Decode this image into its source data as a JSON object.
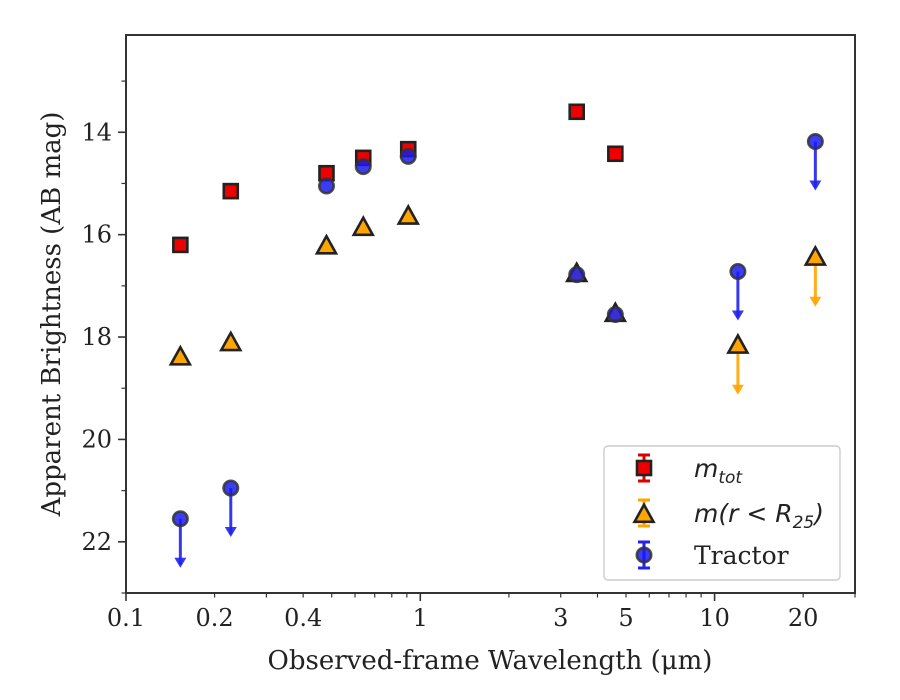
{
  "chart_data": {
    "type": "scatter",
    "title": "",
    "xlabel": "Observed-frame Wavelength (μm)",
    "ylabel": "Apparent Brightness (AB mag)",
    "x_scale": "log",
    "xlim": [
      0.1,
      30
    ],
    "ylim": [
      23,
      12.1
    ],
    "y_inverted": true,
    "x_ticks": [
      0.1,
      0.2,
      0.4,
      1,
      3,
      5,
      10,
      20
    ],
    "x_tick_labels": [
      "0.1",
      "0.2",
      "0.4",
      "1",
      "3",
      "5",
      "10",
      "20"
    ],
    "y_ticks": [
      14,
      16,
      18,
      20,
      22
    ],
    "y_tick_labels": [
      "14",
      "16",
      "18",
      "20",
      "22"
    ],
    "grid": false,
    "legend_position": "lower-right",
    "series": [
      {
        "name": "m_tot",
        "legend_label": "m",
        "legend_sub": "tot",
        "marker": "square",
        "color": "#ee0000",
        "edge_color": "#222222",
        "errorbar_color": "#dd0000",
        "points": [
          {
            "x": 0.153,
            "y": 16.2
          },
          {
            "x": 0.227,
            "y": 15.15
          },
          {
            "x": 0.48,
            "y": 14.8
          },
          {
            "x": 0.64,
            "y": 14.5
          },
          {
            "x": 0.91,
            "y": 14.33
          },
          {
            "x": 3.4,
            "y": 13.6
          },
          {
            "x": 4.6,
            "y": 14.42
          }
        ]
      },
      {
        "name": "m(r < R_25)",
        "legend_label": "m(r < R",
        "legend_sub": "25",
        "legend_close": ")",
        "marker": "triangle",
        "color": "#ffa500",
        "edge_color": "#222222",
        "errorbar_color": "#ffa500",
        "points": [
          {
            "x": 0.153,
            "y": 18.4
          },
          {
            "x": 0.227,
            "y": 18.12
          },
          {
            "x": 0.48,
            "y": 16.23
          },
          {
            "x": 0.64,
            "y": 15.87
          },
          {
            "x": 0.91,
            "y": 15.65
          },
          {
            "x": 3.4,
            "y": 16.77
          },
          {
            "x": 4.6,
            "y": 17.55
          },
          {
            "x": 12.0,
            "y": 18.17,
            "upper_limit": true
          },
          {
            "x": 22.0,
            "y": 16.45,
            "upper_limit": true
          }
        ]
      },
      {
        "name": "Tractor",
        "legend_label": "Tractor",
        "marker": "circle",
        "color": "#1a1aee",
        "edge_color": "#333333",
        "errorbar_color": "#2222ee",
        "points": [
          {
            "x": 0.153,
            "y": 21.55,
            "upper_limit": true
          },
          {
            "x": 0.227,
            "y": 20.95,
            "upper_limit": true
          },
          {
            "x": 0.48,
            "y": 15.05
          },
          {
            "x": 0.64,
            "y": 14.67
          },
          {
            "x": 0.91,
            "y": 14.47
          },
          {
            "x": 3.4,
            "y": 16.78
          },
          {
            "x": 4.6,
            "y": 17.56
          },
          {
            "x": 12.0,
            "y": 16.72,
            "upper_limit": true
          },
          {
            "x": 22.0,
            "y": 14.18,
            "upper_limit": true
          }
        ]
      }
    ]
  }
}
